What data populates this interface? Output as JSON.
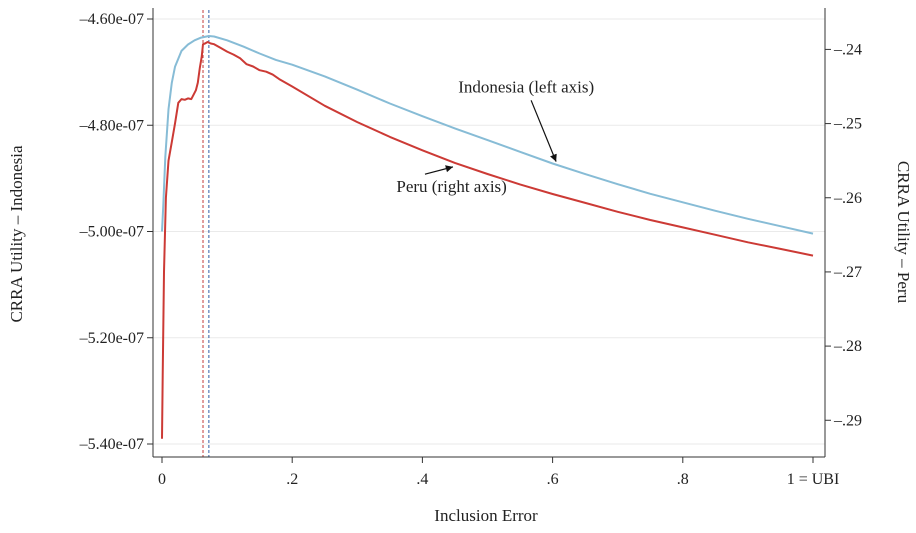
{
  "chart_data": {
    "type": "line",
    "xlabel": "Inclusion Error",
    "ylabel_left": "CRRA Utility – Indonesia",
    "ylabel_right": "CRRA Utility – Peru",
    "x_ticks": [
      {
        "value": 0,
        "label": "0"
      },
      {
        "value": 0.2,
        "label": ".2"
      },
      {
        "value": 0.4,
        "label": ".4"
      },
      {
        "value": 0.6,
        "label": ".6"
      },
      {
        "value": 0.8,
        "label": ".8"
      },
      {
        "value": 1.0,
        "label": "1 = UBI"
      }
    ],
    "y_left_ticks": [
      {
        "value": -4.6e-07,
        "label": "–4.60e-07"
      },
      {
        "value": -4.8e-07,
        "label": "–4.80e-07"
      },
      {
        "value": -5e-07,
        "label": "–5.00e-07"
      },
      {
        "value": -5.2e-07,
        "label": "–5.20e-07"
      },
      {
        "value": -5.4e-07,
        "label": "–5.40e-07"
      }
    ],
    "y_right_ticks": [
      {
        "value": -0.24,
        "label": "–.24"
      },
      {
        "value": -0.25,
        "label": "–.25"
      },
      {
        "value": -0.26,
        "label": "–.26"
      },
      {
        "value": -0.27,
        "label": "–.27"
      },
      {
        "value": -0.28,
        "label": "–.28"
      },
      {
        "value": -0.29,
        "label": "–.29"
      }
    ],
    "xlim": [
      0,
      1
    ],
    "ylim_left": [
      -5.4e-07,
      -4.6e-07
    ],
    "ylim_right": [
      -0.2932,
      -0.2359
    ],
    "grid": true,
    "optimum_lines": [
      {
        "series": "Peru",
        "x": 0.063,
        "color": "#c23b3b"
      },
      {
        "series": "Indonesia",
        "x": 0.072,
        "color": "#2f5fa8"
      }
    ],
    "series": [
      {
        "axis": "left",
        "color": "#87bcd6",
        "points": [
          [
            0,
            -5e-07
          ],
          [
            0.002,
            -4.95e-07
          ],
          [
            0.005,
            -4.86e-07
          ],
          [
            0.01,
            -4.77e-07
          ],
          [
            0.015,
            -4.72e-07
          ],
          [
            0.02,
            -4.69e-07
          ],
          [
            0.03,
            -4.66e-07
          ],
          [
            0.04,
            -4.648e-07
          ],
          [
            0.05,
            -4.64e-07
          ],
          [
            0.06,
            -4.635e-07
          ],
          [
            0.072,
            -4.632e-07
          ],
          [
            0.08,
            -4.633e-07
          ],
          [
            0.1,
            -4.64e-07
          ],
          [
            0.125,
            -4.652e-07
          ],
          [
            0.15,
            -4.665e-07
          ],
          [
            0.175,
            -4.677e-07
          ],
          [
            0.2,
            -4.686e-07
          ],
          [
            0.25,
            -4.708e-07
          ],
          [
            0.3,
            -4.733e-07
          ],
          [
            0.35,
            -4.759e-07
          ],
          [
            0.4,
            -4.783e-07
          ],
          [
            0.45,
            -4.806e-07
          ],
          [
            0.5,
            -4.828e-07
          ],
          [
            0.55,
            -4.85e-07
          ],
          [
            0.6,
            -4.872e-07
          ],
          [
            0.65,
            -4.892e-07
          ],
          [
            0.7,
            -4.911e-07
          ],
          [
            0.75,
            -4.929e-07
          ],
          [
            0.8,
            -4.945e-07
          ],
          [
            0.85,
            -4.961e-07
          ],
          [
            0.9,
            -4.976e-07
          ],
          [
            0.95,
            -4.99e-07
          ],
          [
            1.0,
            -5.004e-07
          ]
        ]
      },
      {
        "axis": "right",
        "color": "#cc3a35",
        "points": [
          [
            0,
            -0.2925
          ],
          [
            0.001,
            -0.284
          ],
          [
            0.003,
            -0.27
          ],
          [
            0.006,
            -0.26
          ],
          [
            0.01,
            -0.255
          ],
          [
            0.015,
            -0.2525
          ],
          [
            0.02,
            -0.25
          ],
          [
            0.025,
            -0.2472
          ],
          [
            0.03,
            -0.2467
          ],
          [
            0.035,
            -0.2468
          ],
          [
            0.04,
            -0.2466
          ],
          [
            0.045,
            -0.2467
          ],
          [
            0.048,
            -0.2462
          ],
          [
            0.052,
            -0.2455
          ],
          [
            0.055,
            -0.2445
          ],
          [
            0.058,
            -0.2425
          ],
          [
            0.061,
            -0.241
          ],
          [
            0.063,
            -0.2393
          ],
          [
            0.066,
            -0.2392
          ],
          [
            0.07,
            -0.239
          ],
          [
            0.075,
            -0.2392
          ],
          [
            0.08,
            -0.2393
          ],
          [
            0.09,
            -0.2398
          ],
          [
            0.1,
            -0.2403
          ],
          [
            0.11,
            -0.2407
          ],
          [
            0.12,
            -0.2412
          ],
          [
            0.13,
            -0.242
          ],
          [
            0.14,
            -0.2423
          ],
          [
            0.15,
            -0.2428
          ],
          [
            0.16,
            -0.243
          ],
          [
            0.17,
            -0.2434
          ],
          [
            0.18,
            -0.244
          ],
          [
            0.2,
            -0.245
          ],
          [
            0.25,
            -0.2476
          ],
          [
            0.3,
            -0.2498
          ],
          [
            0.35,
            -0.2518
          ],
          [
            0.4,
            -0.2536
          ],
          [
            0.45,
            -0.2553
          ],
          [
            0.5,
            -0.2568
          ],
          [
            0.55,
            -0.2582
          ],
          [
            0.6,
            -0.2595
          ],
          [
            0.65,
            -0.2607
          ],
          [
            0.7,
            -0.2619
          ],
          [
            0.75,
            -0.263
          ],
          [
            0.8,
            -0.264
          ],
          [
            0.85,
            -0.265
          ],
          [
            0.9,
            -0.266
          ],
          [
            0.95,
            -0.2669
          ],
          [
            1.0,
            -0.2678
          ]
        ]
      }
    ],
    "annotations": [
      {
        "text": "Indonesia (left axis)",
        "series": "Indonesia",
        "points_to_x": 0.61,
        "label_x": 0.455,
        "label_y_left": -4.738e-07
      },
      {
        "text": "Peru (right axis)",
        "series": "Peru",
        "points_to_x": 0.45,
        "label_x": 0.36,
        "label_y_left": -4.926e-07
      }
    ]
  }
}
